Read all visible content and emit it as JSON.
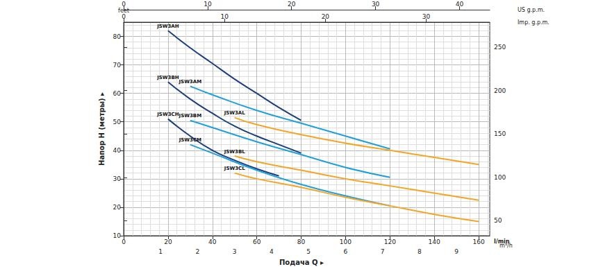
{
  "chart_data": {
    "type": "line",
    "xlabel": "Подача Q ▸",
    "x_unit": "l/min",
    "ylabel": "Напор H (метры) ▸",
    "xlim": [
      0,
      165
    ],
    "xticks": [
      0,
      20,
      40,
      60,
      80,
      100,
      120,
      140,
      160
    ],
    "ylim": [
      10,
      85
    ],
    "yticks": [
      10,
      20,
      30,
      40,
      50,
      60,
      70,
      80
    ],
    "y2label": "feet",
    "y2lim": [
      32.8,
      278.9
    ],
    "y2ticks": [
      50,
      100,
      150,
      200,
      250
    ],
    "x2label": "US g.p.m.",
    "x2lim": [
      0,
      43.6
    ],
    "x2ticks": [
      0,
      10,
      20,
      30,
      40
    ],
    "x3label": "Imp. g.p.m.",
    "x3lim": [
      0,
      36.3
    ],
    "x3ticks": [
      0,
      10,
      20,
      30
    ],
    "x4label": "m³/h",
    "x4lim": [
      0,
      9.9
    ],
    "x4ticks": [
      1,
      2,
      3,
      4,
      5,
      6,
      7,
      8,
      9
    ],
    "grid": true,
    "series": [
      {
        "name": "JSW3AH",
        "color": "#1c3f7a",
        "x": [
          20,
          30,
          40,
          50,
          60,
          70,
          80
        ],
        "values": [
          82,
          76,
          70.5,
          65,
          60,
          55,
          50.5
        ]
      },
      {
        "name": "JSW3BH",
        "color": "#1c3f7a",
        "x": [
          20,
          30,
          40,
          50,
          60,
          70,
          80
        ],
        "values": [
          64,
          58,
          53,
          48.5,
          45,
          42,
          39
        ]
      },
      {
        "name": "JSW3CH",
        "color": "#1c3f7a",
        "x": [
          20,
          30,
          40,
          50,
          60,
          70
        ],
        "values": [
          51,
          45,
          40,
          36.5,
          33.5,
          31
        ]
      },
      {
        "name": "JSW3AM",
        "color": "#1fa0da",
        "x": [
          30,
          40,
          60,
          80,
          100,
          120
        ],
        "values": [
          62.5,
          59.5,
          54,
          49.5,
          45,
          40.5
        ]
      },
      {
        "name": "JSW3BM",
        "color": "#1fa0da",
        "x": [
          30,
          40,
          60,
          80,
          100,
          120
        ],
        "values": [
          50.5,
          48,
          43,
          38.5,
          34,
          30.5
        ]
      },
      {
        "name": "JSW3CM",
        "color": "#1fa0da",
        "x": [
          30,
          40,
          60,
          80,
          100,
          120
        ],
        "values": [
          42,
          39,
          33,
          28,
          24,
          20.5
        ]
      },
      {
        "name": "JSW3AL",
        "color": "#f5a524",
        "x": [
          50,
          60,
          80,
          100,
          120,
          140,
          160
        ],
        "values": [
          51.5,
          49,
          45.5,
          42.5,
          40,
          37.5,
          35
        ]
      },
      {
        "name": "JSW3BL",
        "color": "#f5a524",
        "x": [
          50,
          60,
          80,
          100,
          120,
          140,
          160
        ],
        "values": [
          38,
          36,
          33,
          30,
          27.5,
          25,
          22.5
        ]
      },
      {
        "name": "JSW3CL",
        "color": "#f5a524",
        "x": [
          50,
          60,
          80,
          100,
          120,
          140,
          160
        ],
        "values": [
          32,
          30,
          27,
          23.5,
          20.5,
          17.5,
          15
        ]
      }
    ]
  }
}
